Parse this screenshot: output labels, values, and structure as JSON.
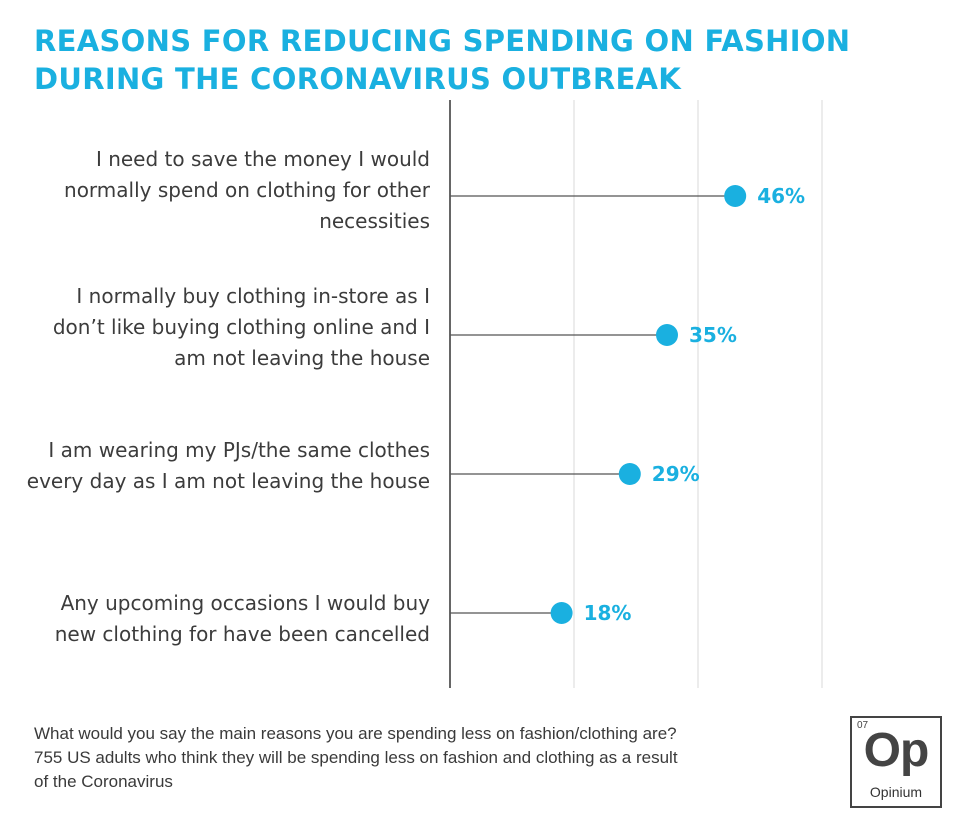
{
  "chart_data": {
    "type": "dot",
    "title": [
      "REASONS FOR REDUCING SPENDING ON FASHION",
      "DURING THE CORONAVIRUS OUTBREAK"
    ],
    "categories": [
      [
        "I need to save the money I would",
        "normally spend on clothing for other",
        "necessities"
      ],
      [
        "I normally buy clothing in-store as I",
        "don’t like buying clothing online and I",
        "am not leaving  the house"
      ],
      [
        "I am wearing my PJs/the same clothes",
        "every day as I am not leaving the house"
      ],
      [
        "Any upcoming occasions I would buy",
        "new clothing for have been cancelled"
      ]
    ],
    "values": [
      46,
      35,
      29,
      18
    ],
    "value_labels": [
      "46%",
      "35%",
      "29%",
      "18%"
    ],
    "unit": "%",
    "xlim": [
      0,
      60
    ],
    "grid": true,
    "colors": {
      "accent": "#1ab0e0",
      "stem": "#555555",
      "grid": "#d9d9d9"
    }
  },
  "footnote": [
    "What would you say the main reasons you are spending less on fashion/clothing are?",
    "755 US  adults who think they will  be spending less on fashion and clothing as a result",
    "of the Coronavirus"
  ],
  "logo": {
    "number": "07",
    "symbol": "Op",
    "name": "Opinium"
  }
}
